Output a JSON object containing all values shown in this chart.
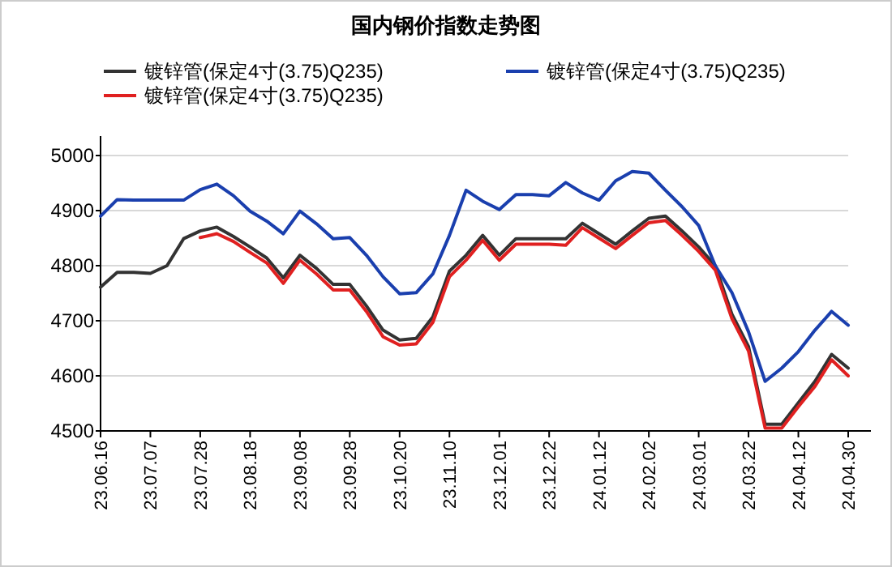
{
  "chart_data": {
    "type": "line",
    "title": "国内钢价指数走势图",
    "categories": [
      "23.06.16",
      null,
      null,
      "23.07.07",
      null,
      null,
      "23.07.28",
      null,
      null,
      "23.08.18",
      null,
      null,
      "23.09.08",
      null,
      null,
      "23.09.28",
      null,
      null,
      "23.10.20",
      null,
      null,
      "23.11.10",
      null,
      null,
      "23.12.01",
      null,
      null,
      "23.12.22",
      null,
      null,
      "24.01.12",
      null,
      null,
      "24.02.02",
      null,
      null,
      "24.03.01",
      null,
      null,
      "24.03.22",
      null,
      null,
      "24.04.12",
      null,
      null,
      "24.04.30"
    ],
    "series": [
      {
        "name": "镀锌管(保定4寸(3.75)Q235)",
        "color": "#333333",
        "values": [
          4761,
          4788,
          4788,
          4786,
          4800,
          4849,
          4863,
          4870,
          4853,
          4834,
          4814,
          4778,
          4819,
          4795,
          4766,
          4766,
          4727,
          4683,
          4665,
          4668,
          4707,
          4790,
          4819,
          4855,
          4819,
          4849,
          4849,
          4849,
          4849,
          4877,
          4858,
          4839,
          4863,
          4886,
          4890,
          4863,
          4834,
          4800,
          4712,
          4653,
          4512,
          4512,
          4551,
          4590,
          4639,
          4614
        ]
      },
      {
        "name": "镀锌管(保定4寸(3.75)Q235)",
        "color": "#1a3fae",
        "values": [
          4890,
          4920,
          4919,
          4919,
          4919,
          4919,
          4938,
          4948,
          4927,
          4899,
          4881,
          4858,
          4899,
          4876,
          4849,
          4851,
          4819,
          4780,
          4749,
          4751,
          4785,
          4855,
          4937,
          4917,
          4902,
          4929,
          4929,
          4927,
          4951,
          4932,
          4919,
          4954,
          4971,
          4968,
          4937,
          4907,
          4873,
          4800,
          4751,
          4680,
          4590,
          4614,
          4644,
          4683,
          4717,
          4692
        ]
      },
      {
        "name": "镀锌管(保定4寸(3.75)Q235)",
        "color": "#e02020",
        "values": [
          null,
          null,
          null,
          null,
          null,
          null,
          4851,
          4858,
          4844,
          4824,
          4805,
          4768,
          4810,
          4785,
          4756,
          4756,
          4717,
          4671,
          4656,
          4658,
          4697,
          4780,
          4810,
          4846,
          4810,
          4839,
          4839,
          4839,
          4837,
          4869,
          4850,
          4831,
          4855,
          4878,
          4882,
          4855,
          4826,
          4792,
          4704,
          4645,
          4505,
          4505,
          4544,
          4581,
          4629,
          4600
        ]
      }
    ],
    "ylim": [
      4500,
      5000
    ],
    "yticks": [
      4500,
      4600,
      4700,
      4800,
      4900,
      5000
    ],
    "grid": "y",
    "legend": "top",
    "marker": "none",
    "line_style": "solid"
  }
}
